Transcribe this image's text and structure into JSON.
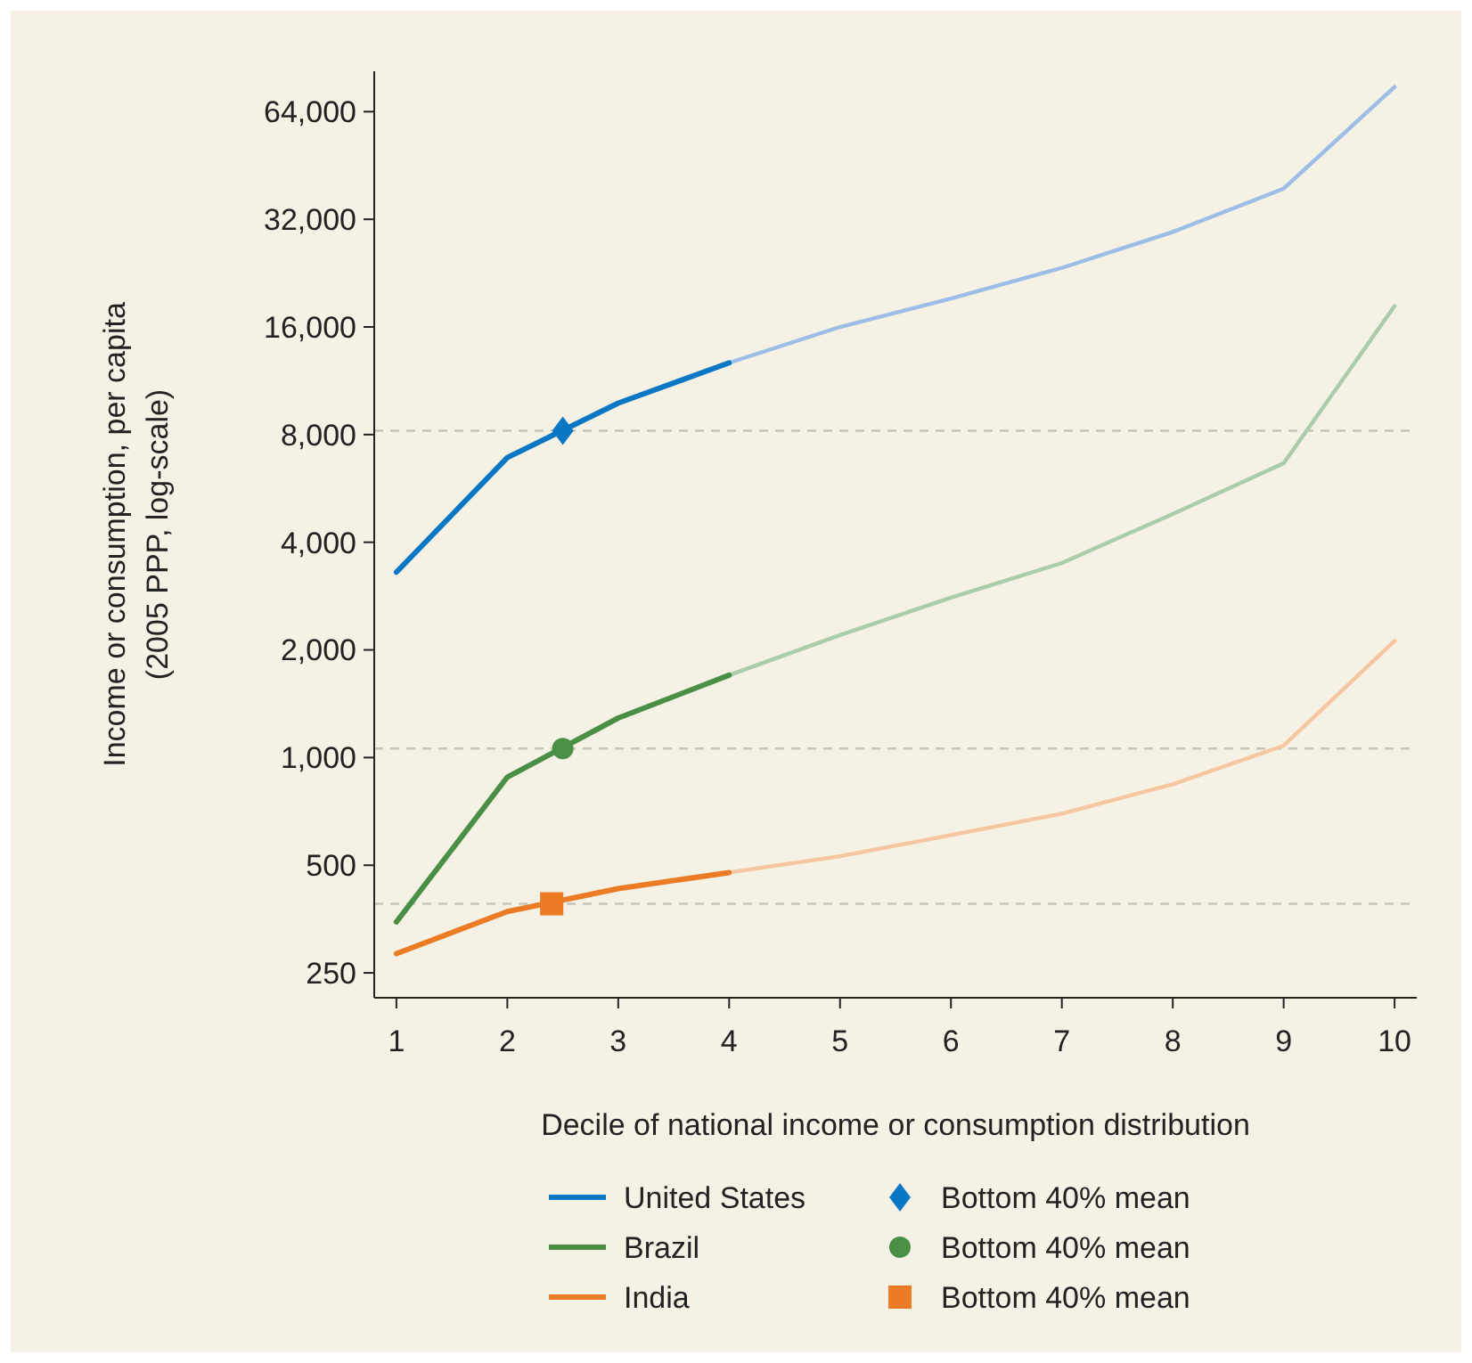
{
  "chart_data": {
    "type": "line",
    "xlabel": "Decile of national income or consumption distribution",
    "ylabel": "Income or consumption, per capita\n(2005 PPP, log-scale)",
    "log": "y",
    "xlim": [
      0.8,
      10.2
    ],
    "xticks": [
      1,
      2,
      3,
      4,
      5,
      6,
      7,
      8,
      9,
      10
    ],
    "ylim": [
      213,
      83000
    ],
    "yticks": [
      {
        "value": 250,
        "label": "250"
      },
      {
        "value": 500,
        "label": "500"
      },
      {
        "value": 1000,
        "label": "1,000"
      },
      {
        "value": 2000,
        "label": "2,000"
      },
      {
        "value": 4000,
        "label": "4,000"
      },
      {
        "value": 8000,
        "label": "8,000"
      },
      {
        "value": 16000,
        "label": "16,000"
      },
      {
        "value": 32000,
        "label": "32,000"
      },
      {
        "value": 64000,
        "label": "64,000"
      }
    ],
    "grid": false,
    "legend": "bottom",
    "line_style": "solid",
    "ref_lines": [
      {
        "axis": "y",
        "value": 8200,
        "color": "#c8c4b8",
        "line_style": "dashed"
      },
      {
        "axis": "y",
        "value": 1060,
        "color": "#c8c4b8",
        "line_style": "dashed"
      },
      {
        "axis": "y",
        "value": 390,
        "color": "#c8c4b8",
        "line_style": "dashed"
      }
    ],
    "series": [
      {
        "type": "line",
        "color": "#9bbde6",
        "x": [
          4,
          5,
          6,
          7,
          8,
          9,
          10
        ],
        "values": [
          12700,
          16000,
          19200,
          23400,
          29500,
          39000,
          75000
        ]
      },
      {
        "type": "line",
        "color": "#a9ccaa",
        "x": [
          4,
          5,
          6,
          7,
          8,
          9,
          10
        ],
        "values": [
          1700,
          2200,
          2800,
          3500,
          4800,
          6650,
          18300
        ]
      },
      {
        "type": "line",
        "color": "#f5c6a0",
        "x": [
          4,
          5,
          6,
          7,
          8,
          9,
          10
        ],
        "values": [
          477,
          530,
          607,
          697,
          842,
          1080,
          2120
        ]
      },
      {
        "type": "line",
        "name": "United States",
        "color": "#0a77c4",
        "x": [
          1,
          2,
          3,
          4
        ],
        "values": [
          3300,
          6900,
          9800,
          12700
        ]
      },
      {
        "type": "scatter",
        "name": "Bottom 40% mean",
        "marker": "diamond",
        "color": "#0a77c4",
        "x": [
          2.5
        ],
        "values": [
          8200
        ]
      },
      {
        "type": "line",
        "name": "Brazil",
        "color": "#4a8f46",
        "x": [
          1,
          2,
          3,
          4
        ],
        "values": [
          347,
          882,
          1290,
          1700
        ]
      },
      {
        "type": "scatter",
        "name": "Bottom 40% mean",
        "marker": "circle",
        "color": "#4a8f46",
        "x": [
          2.5
        ],
        "values": [
          1060
        ]
      },
      {
        "type": "line",
        "name": "India",
        "color": "#ec7b25",
        "x": [
          1,
          2,
          3,
          4
        ],
        "values": [
          283,
          371,
          430,
          477
        ]
      },
      {
        "type": "scatter",
        "name": "Bottom 40% mean",
        "marker": "square",
        "color": "#ec7b25",
        "x": [
          2.4
        ],
        "values": [
          390
        ]
      }
    ]
  }
}
